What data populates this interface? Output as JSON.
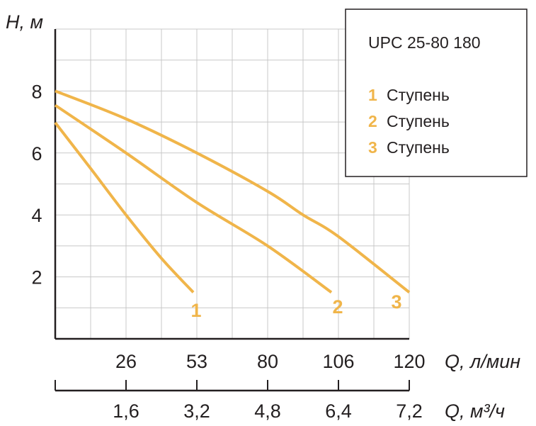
{
  "chart_data": {
    "type": "line",
    "title": "UPC 25-80 180",
    "ylabel": "H, м",
    "xlabel": "Q, л/мин",
    "xlabel2": "Q, м³/ч",
    "ylim": [
      0,
      10
    ],
    "yticks": [
      2,
      4,
      6,
      8
    ],
    "x_divisions": 10,
    "xticks_lmin": [
      {
        "idx": 2,
        "label": "26"
      },
      {
        "idx": 4,
        "label": "53"
      },
      {
        "idx": 6,
        "label": "80"
      },
      {
        "idx": 8,
        "label": "106"
      },
      {
        "idx": 10,
        "label": "120"
      }
    ],
    "xticks_m3h": [
      {
        "idx": 2,
        "label": "1,6"
      },
      {
        "idx": 4,
        "label": "3,2"
      },
      {
        "idx": 6,
        "label": "4,8"
      },
      {
        "idx": 8,
        "label": "6,4"
      },
      {
        "idx": 10,
        "label": "7,2"
      }
    ],
    "grid": true,
    "legend_position": "top-right",
    "color": "#f0b54a",
    "series": [
      {
        "name": "Ступень",
        "num": "1",
        "points": [
          [
            0,
            6.98
          ],
          [
            1,
            5.5
          ],
          [
            2,
            4.0
          ],
          [
            3,
            2.6
          ],
          [
            3.9,
            1.5
          ]
        ]
      },
      {
        "name": "Ступень",
        "num": "2",
        "points": [
          [
            0,
            7.54
          ],
          [
            2,
            6.0
          ],
          [
            4,
            4.4
          ],
          [
            6,
            3.0
          ],
          [
            7.8,
            1.5
          ]
        ]
      },
      {
        "name": "Ступень",
        "num": "3",
        "points": [
          [
            0,
            8.0
          ],
          [
            2,
            7.1
          ],
          [
            4,
            6.0
          ],
          [
            6,
            4.76
          ],
          [
            7,
            4.0
          ],
          [
            8,
            3.3
          ],
          [
            10,
            1.5
          ]
        ]
      }
    ]
  }
}
